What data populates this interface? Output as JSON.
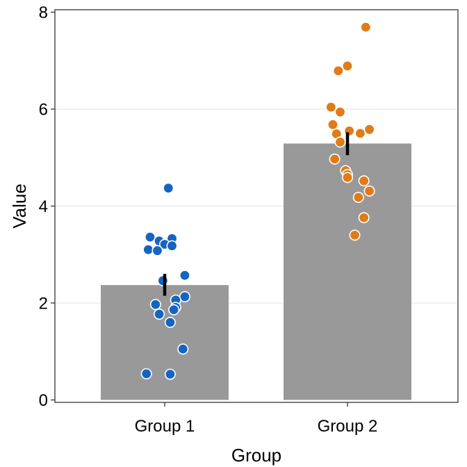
{
  "chart_data": {
    "type": "bar",
    "xlabel": "Group",
    "ylabel": "Value",
    "ylim": [
      0,
      8
    ],
    "yticks": [
      0,
      2,
      4,
      6,
      8
    ],
    "grid": "horizontal major gridlines at 2, 4, 6",
    "categories": [
      "Group 1",
      "Group 2"
    ],
    "values": [
      2.37,
      5.29
    ],
    "error_bars": [
      {
        "low": 2.15,
        "high": 2.6
      },
      {
        "low": 5.05,
        "high": 5.52
      }
    ],
    "points": [
      {
        "category": "Group 1",
        "color": "#1565C0",
        "y": [
          4.37,
          3.36,
          3.33,
          3.28,
          3.21,
          3.18,
          3.1,
          3.08,
          2.57,
          2.46,
          2.13,
          2.06,
          1.97,
          1.91,
          1.86,
          1.77,
          1.6,
          1.05,
          0.54,
          0.53
        ],
        "jitter": [
          0.02,
          -0.08,
          0.04,
          -0.03,
          0.0,
          0.04,
          -0.09,
          -0.04,
          0.11,
          -0.01,
          0.11,
          0.06,
          -0.05,
          0.06,
          0.05,
          -0.03,
          0.03,
          0.1,
          -0.1,
          0.03
        ]
      },
      {
        "category": "Group 2",
        "color": "#E07B18",
        "y": [
          7.69,
          6.89,
          6.79,
          6.04,
          5.94,
          5.68,
          5.58,
          5.55,
          5.5,
          5.49,
          5.32,
          4.97,
          4.73,
          4.65,
          4.59,
          4.52,
          4.31,
          4.18,
          3.76,
          3.4
        ],
        "jitter": [
          0.1,
          0.0,
          -0.05,
          -0.09,
          -0.04,
          -0.08,
          0.12,
          0.01,
          0.07,
          -0.06,
          -0.04,
          -0.07,
          -0.01,
          0.0,
          0.0,
          0.09,
          0.12,
          0.06,
          0.09,
          0.04
        ]
      }
    ],
    "bar_color": "#999999",
    "error_color": "#000000",
    "gridline_color": "#EBEBEB"
  }
}
